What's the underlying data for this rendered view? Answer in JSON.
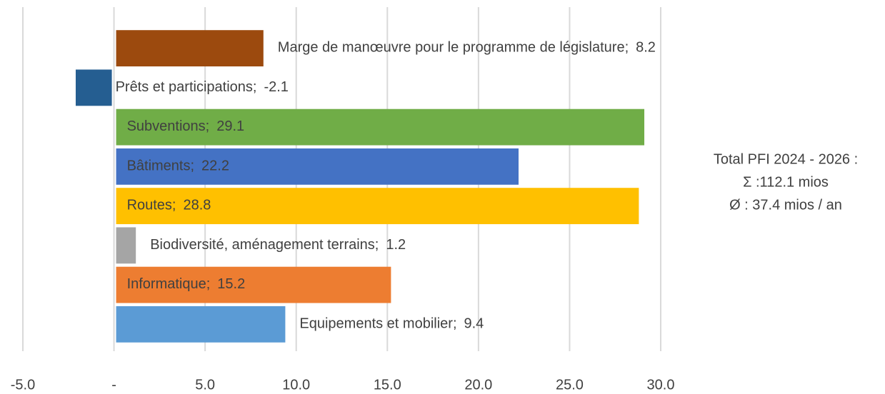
{
  "chart_data": {
    "type": "bar",
    "orientation": "horizontal",
    "categories": [
      "Marge de manœuvre pour le programme de législature;",
      "Prêts et participations;",
      "Subventions;",
      "Bâtiments;",
      "Routes;",
      "Biodiversité, aménagement terrains;",
      "Informatique;",
      "Equipements et mobilier;"
    ],
    "values": [
      8.2,
      -2.1,
      29.1,
      22.2,
      28.8,
      1.2,
      15.2,
      9.4
    ],
    "colors": [
      "#9c4a0e",
      "#255e91",
      "#70ad47",
      "#4472c4",
      "#ffc000",
      "#a5a5a5",
      "#ed7d31",
      "#5b9bd5"
    ],
    "xlim": [
      -5,
      30
    ],
    "xticks": [
      {
        "value": -5,
        "label": "-5.0"
      },
      {
        "value": 0,
        "label": "-"
      },
      {
        "value": 5,
        "label": "5.0"
      },
      {
        "value": 10,
        "label": "10.0"
      },
      {
        "value": 15,
        "label": "15.0"
      },
      {
        "value": 20,
        "label": "20.0"
      },
      {
        "value": 25,
        "label": "25.0"
      },
      {
        "value": 30,
        "label": "30.0"
      }
    ],
    "grid": true,
    "annotation": [
      "Total PFI 2024 - 2026 :",
      "Σ :112.1 mios",
      "Ø : 37.4 mios / an"
    ]
  }
}
